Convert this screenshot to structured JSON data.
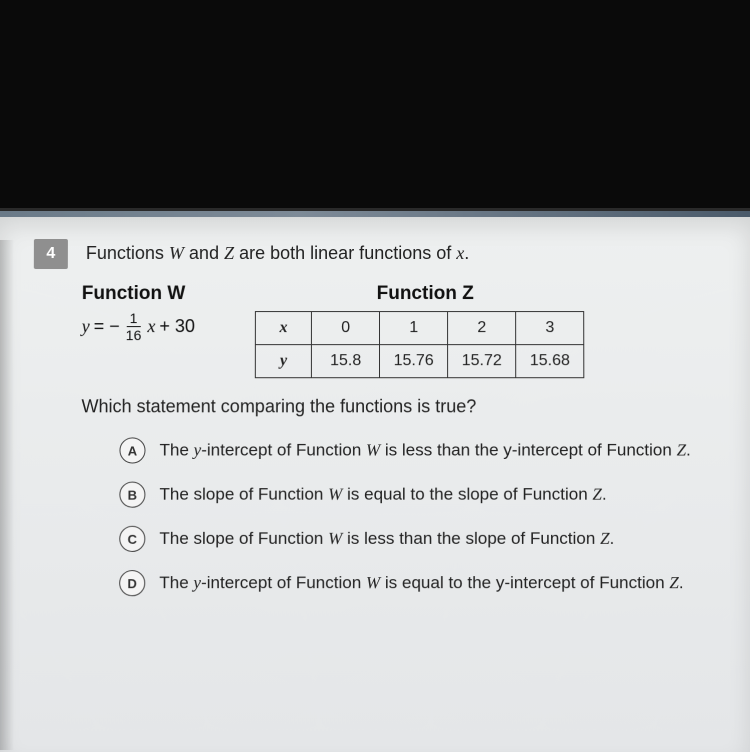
{
  "question": {
    "number": "4",
    "stem_pre": "Functions ",
    "stem_W": "W",
    "stem_mid": " and ",
    "stem_Z": "Z",
    "stem_post": " are both linear functions of ",
    "stem_x": "x",
    "stem_end": "."
  },
  "functionW": {
    "title": "Function W",
    "eq_y": "y",
    "eq_eqneg": " = −",
    "frac_num": "1",
    "frac_den": "16",
    "eq_x": "x",
    "eq_tail": " + 30"
  },
  "functionZ": {
    "title": "Function Z",
    "row1hdr": "x",
    "row2hdr": "y",
    "xvals": [
      "0",
      "1",
      "2",
      "3"
    ],
    "yvals": [
      "15.8",
      "15.76",
      "15.72",
      "15.68"
    ]
  },
  "prompt": "Which statement comparing the functions is true?",
  "choices": {
    "A": {
      "letter": "A",
      "pre": "The ",
      "yi": "y",
      "mid1": "-intercept of Function ",
      "W": "W",
      "mid2": " is less than the y-intercept of Function ",
      "Z": "Z",
      "end": "."
    },
    "B": {
      "letter": "B",
      "pre": "The slope of Function ",
      "W": "W",
      "mid": " is equal to the slope of Function ",
      "Z": "Z",
      "end": "."
    },
    "C": {
      "letter": "C",
      "pre": "The slope of Function ",
      "W": "W",
      "mid": " is less than the slope of Function ",
      "Z": "Z",
      "end": "."
    },
    "D": {
      "letter": "D",
      "pre": "The ",
      "yi": "y",
      "mid1": "-intercept of Function ",
      "W": "W",
      "mid2": " is equal to the y-intercept of Function ",
      "Z": "Z",
      "end": "."
    }
  },
  "style": {
    "bg_top": "#0a0a0a",
    "screen_bg": "#e9ebec",
    "qnum_bg": "#8f8f8f",
    "border": "#333333",
    "text": "#222222"
  }
}
